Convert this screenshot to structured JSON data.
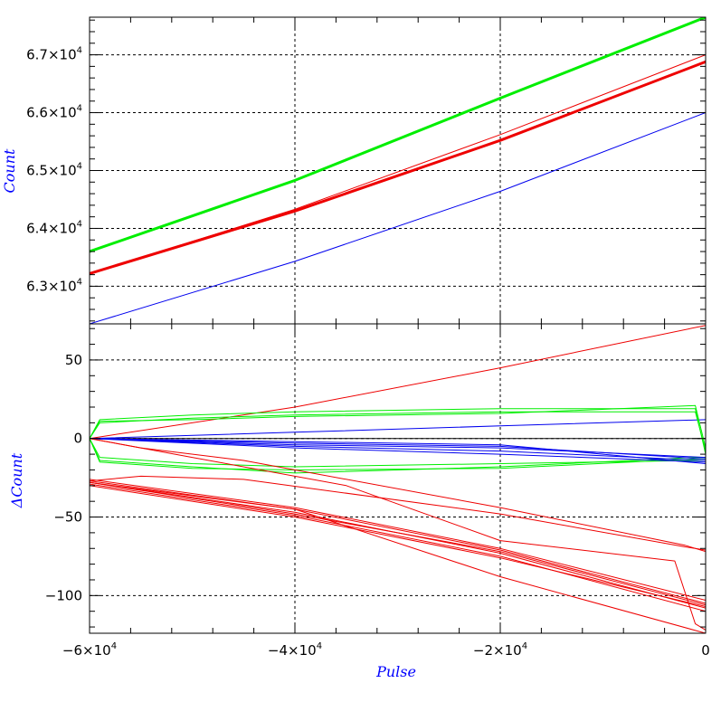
{
  "chart_data": [
    {
      "type": "line",
      "panel": "top",
      "ylabel": "Count",
      "xlim": [
        -60000,
        0
      ],
      "ylim": [
        62350,
        67650
      ],
      "yticks": [
        {
          "value": 63000,
          "mantissa": "6.3",
          "exp": "4"
        },
        {
          "value": 64000,
          "mantissa": "6.4",
          "exp": "4"
        },
        {
          "value": 65000,
          "mantissa": "6.5",
          "exp": "4"
        },
        {
          "value": 66000,
          "mantissa": "6.6",
          "exp": "4"
        },
        {
          "value": 67000,
          "mantissa": "6.7",
          "exp": "4"
        }
      ],
      "grid": true,
      "series": [
        {
          "color": "#00ee00",
          "width": 3,
          "x": [
            -60000,
            -40000,
            -20000,
            0
          ],
          "y": [
            63600,
            64830,
            66250,
            67650
          ]
        },
        {
          "color": "#ee0000",
          "width": 1,
          "x": [
            -60000,
            -40000,
            -20000,
            0
          ],
          "y": [
            63220,
            64330,
            65620,
            67000
          ]
        },
        {
          "color": "#ee0000",
          "width": 3,
          "x": [
            -60000,
            -40000,
            -20000,
            0
          ],
          "y": [
            63220,
            64300,
            65520,
            66880
          ]
        },
        {
          "color": "#0000ee",
          "width": 1,
          "x": [
            -60000,
            -40000,
            -20000,
            0
          ],
          "y": [
            62350,
            63430,
            64640,
            66000
          ]
        }
      ]
    },
    {
      "type": "line",
      "panel": "bottom",
      "xlabel": "Pulse",
      "ylabel": "ΔCount",
      "xlim": [
        -60000,
        0
      ],
      "ylim": [
        -124,
        73
      ],
      "xticks": [
        {
          "value": -60000,
          "mantissa": "−6",
          "exp": "4"
        },
        {
          "value": -40000,
          "mantissa": "−4",
          "exp": "4"
        },
        {
          "value": -20000,
          "mantissa": "−2",
          "exp": "4"
        },
        {
          "value": 0,
          "mantissa": "0",
          "exp": ""
        }
      ],
      "yticks": [
        {
          "value": 50,
          "label": "50"
        },
        {
          "value": 0,
          "label": "0"
        },
        {
          "value": -50,
          "label": "−50"
        },
        {
          "value": -100,
          "label": "−100"
        }
      ],
      "grid": true,
      "series": [
        {
          "color": "#000000",
          "width": 1,
          "x": [
            -60000,
            0
          ],
          "y": [
            0,
            0
          ]
        },
        {
          "color": "#ee0000",
          "width": 1,
          "x": [
            -60000,
            -40000,
            -20000,
            0
          ],
          "y": [
            0,
            20,
            45,
            72
          ]
        },
        {
          "color": "#0000ee",
          "width": 1,
          "x": [
            -60000,
            -40000,
            -20000,
            0
          ],
          "y": [
            0,
            4,
            8,
            12
          ]
        },
        {
          "color": "#00ee00",
          "width": 1,
          "x": [
            -60000,
            -59000,
            -50000,
            -40000,
            -20000,
            -1000,
            0
          ],
          "y": [
            0,
            12,
            15,
            17,
            19,
            19,
            -10
          ]
        },
        {
          "color": "#00ee00",
          "width": 1,
          "x": [
            -60000,
            -59000,
            -50000,
            -40000,
            -20000,
            -1000,
            0
          ],
          "y": [
            0,
            10,
            13,
            15,
            17,
            17,
            -8
          ]
        },
        {
          "color": "#00ee00",
          "width": 1,
          "x": [
            -60000,
            -59000,
            -50000,
            -40000,
            -20000,
            -1000,
            0
          ],
          "y": [
            0,
            11,
            12,
            14,
            16,
            21,
            -6
          ]
        },
        {
          "color": "#00ee00",
          "width": 1,
          "x": [
            -60000,
            -59000,
            -50000,
            -40000,
            -20000,
            -1000,
            0
          ],
          "y": [
            0,
            -14,
            -18,
            -22,
            -18,
            -12,
            -12
          ]
        },
        {
          "color": "#00ee00",
          "width": 1,
          "x": [
            -60000,
            -59000,
            -50000,
            -40000,
            -20000,
            -1000,
            0
          ],
          "y": [
            0,
            -12,
            -16,
            -18,
            -16,
            -14,
            -14
          ]
        },
        {
          "color": "#00ee00",
          "width": 1,
          "x": [
            -60000,
            -59000,
            -50000,
            -40000,
            -20000,
            -1000,
            0
          ],
          "y": [
            0,
            -15,
            -19,
            -20,
            -19,
            -13,
            -13
          ]
        },
        {
          "color": "#0000ee",
          "width": 1,
          "x": [
            -60000,
            -40000,
            -20000,
            0
          ],
          "y": [
            0,
            -3,
            -5,
            -13
          ]
        },
        {
          "color": "#0000ee",
          "width": 1,
          "x": [
            -60000,
            -40000,
            -20000,
            0
          ],
          "y": [
            0,
            -5,
            -8,
            -14
          ]
        },
        {
          "color": "#0000ee",
          "width": 1,
          "x": [
            -60000,
            -40000,
            -20000,
            0
          ],
          "y": [
            0,
            -2,
            -4,
            -16
          ]
        },
        {
          "color": "#0000ee",
          "width": 1,
          "x": [
            -60000,
            -40000,
            -20000,
            0
          ],
          "y": [
            0,
            -6,
            -10,
            -15
          ]
        },
        {
          "color": "#0000ee",
          "width": 1,
          "x": [
            -60000,
            -40000,
            -20000,
            0
          ],
          "y": [
            0,
            -4,
            -6,
            -12
          ]
        },
        {
          "color": "#ee0000",
          "width": 1,
          "x": [
            -60000,
            -40000,
            -20000,
            0
          ],
          "y": [
            -28,
            -47,
            -73,
            -108
          ]
        },
        {
          "color": "#ee0000",
          "width": 1,
          "x": [
            -60000,
            -40000,
            -20000,
            0
          ],
          "y": [
            -27,
            -45,
            -71,
            -105
          ]
        },
        {
          "color": "#ee0000",
          "width": 1,
          "x": [
            -60000,
            -40000,
            -20000,
            0
          ],
          "y": [
            -29,
            -49,
            -75,
            -110
          ]
        },
        {
          "color": "#ee0000",
          "width": 1,
          "x": [
            -60000,
            -40000,
            -20000,
            0
          ],
          "y": [
            -26,
            -44,
            -70,
            -103
          ]
        },
        {
          "color": "#ee0000",
          "width": 1,
          "x": [
            -60000,
            -40000,
            -20000,
            0
          ],
          "y": [
            -30,
            -50,
            -76,
            -107
          ]
        },
        {
          "color": "#ee0000",
          "width": 1,
          "x": [
            -60000,
            -40000,
            -20000,
            0
          ],
          "y": [
            -28,
            -48,
            -72,
            -106
          ]
        },
        {
          "color": "#ee0000",
          "width": 1,
          "x": [
            -60000,
            -55000,
            -45000,
            -20000,
            -2000,
            0
          ],
          "y": [
            0,
            -6,
            -14,
            -44,
            -68,
            -72
          ]
        },
        {
          "color": "#ee0000",
          "width": 1,
          "x": [
            -60000,
            -55000,
            -45000,
            -20000,
            -2000,
            0
          ],
          "y": [
            -27,
            -24,
            -26,
            -48,
            -69,
            -71
          ]
        },
        {
          "color": "#ee0000",
          "width": 1,
          "x": [
            -60000,
            -50000,
            -35000,
            -20000,
            -3000,
            -1000,
            0
          ],
          "y": [
            0,
            -12,
            -30,
            -65,
            -78,
            -118,
            -122
          ]
        },
        {
          "color": "#ee0000",
          "width": 1,
          "x": [
            -60000,
            -40000,
            -20000,
            0
          ],
          "y": [
            -28,
            -45,
            -88,
            -124
          ]
        }
      ]
    }
  ],
  "xaxis": {
    "title": "Pulse"
  }
}
